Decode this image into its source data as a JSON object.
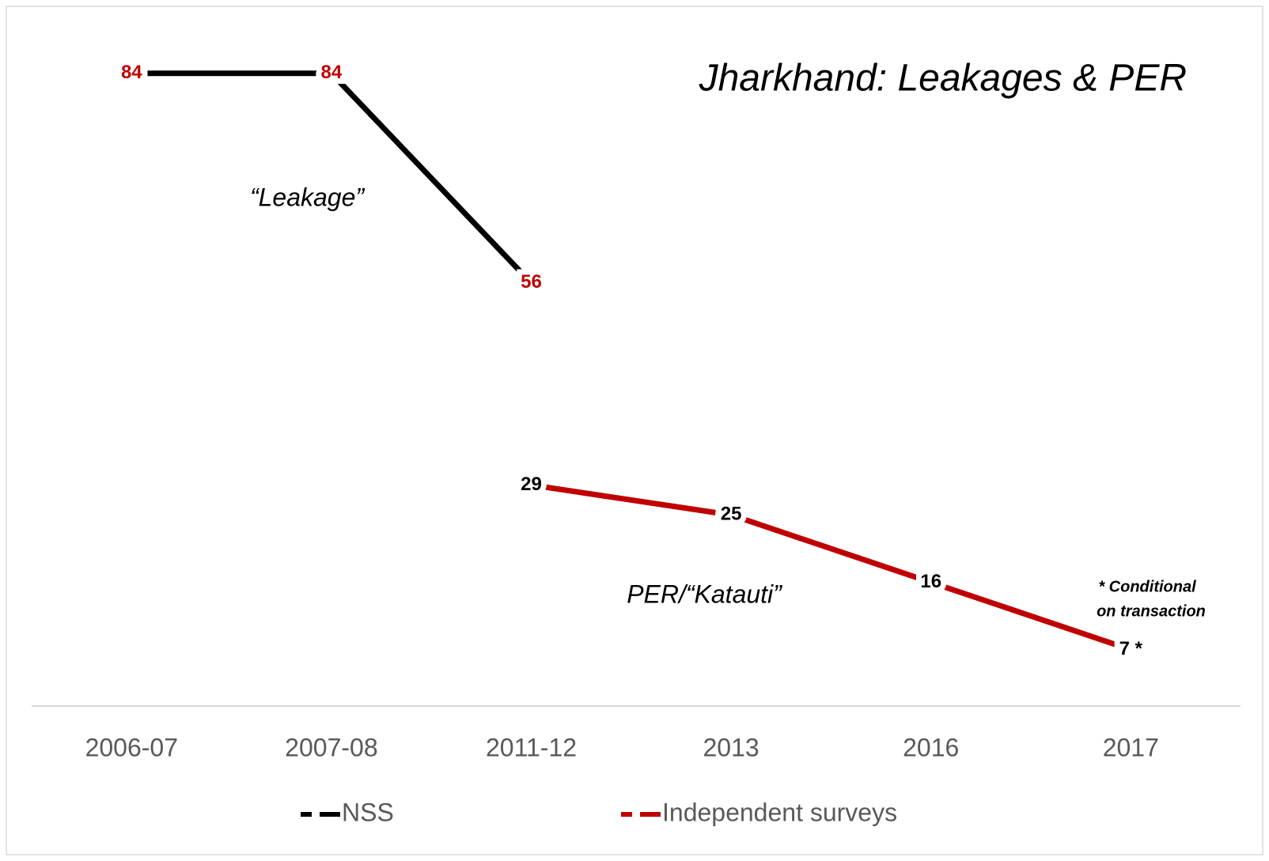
{
  "chart_data": {
    "type": "line",
    "title": "Jharkhand: Leakages & PER",
    "categories": [
      "2006-07",
      "2007-08",
      "2011-12",
      "2013",
      "2016",
      "2017"
    ],
    "series": [
      {
        "name": "NSS",
        "color": "#000000",
        "label_color": "#c00000",
        "values": [
          84,
          84,
          56,
          null,
          null,
          null
        ]
      },
      {
        "name": "Independent surveys",
        "color": "#c00000",
        "label_color": "#000000",
        "values": [
          null,
          null,
          29,
          25,
          16,
          7
        ],
        "value_labels": [
          null,
          null,
          "29",
          "25",
          "16",
          "7 *"
        ]
      }
    ],
    "annotations": [
      "“Leakage”",
      "PER/“Katauti”"
    ],
    "note": [
      "* Conditional",
      "on transaction"
    ],
    "ylim": [
      0,
      90
    ],
    "legend": "bottom"
  }
}
